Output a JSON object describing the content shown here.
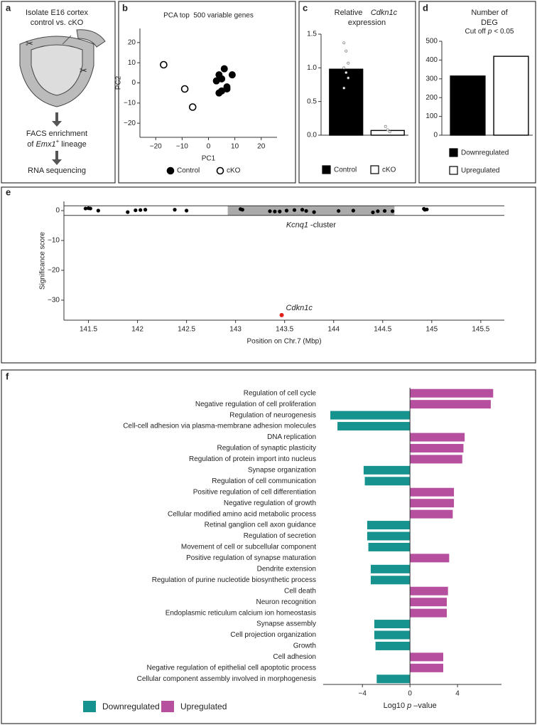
{
  "panel_labels": [
    "a",
    "b",
    "c",
    "d",
    "e",
    "f"
  ],
  "diagram": {
    "step1": [
      "Isolate E16 cortex",
      "control vs. cKO"
    ],
    "step2": {
      "line1": "FACS enrichment",
      "prefix": "of",
      "gene": "Emx1",
      "sup": "+",
      "suffix": "lineage"
    },
    "step3": "RNA sequencing"
  },
  "chart_data": [
    {
      "type": "scatter",
      "title": "PCA top  500 variable genes",
      "xlabel": "PC1",
      "ylabel": "PC2",
      "xlim": [
        -26,
        26
      ],
      "ylim": [
        -27,
        27
      ],
      "xticks": [
        {
          "value": -20,
          "label": "−20"
        },
        {
          "value": -10,
          "label": "−10"
        },
        0,
        10,
        20
      ],
      "yticks": [
        {
          "value": -20,
          "label": "−20"
        },
        {
          "value": -10,
          "label": "−10"
        },
        0,
        10,
        20
      ],
      "series": [
        {
          "name": "Control",
          "color": "#000000",
          "marker": "filled",
          "x": [
            4,
            5,
            7,
            9,
            6,
            4,
            7,
            5,
            3
          ],
          "values": [
            -5,
            2,
            -2,
            4,
            7,
            4,
            -3,
            -4,
            1
          ]
        },
        {
          "name": "cKO",
          "color": "#000000",
          "marker": "open",
          "x": [
            -17,
            -9,
            -6
          ],
          "values": [
            9,
            -3,
            -12
          ]
        }
      ]
    },
    {
      "type": "bar",
      "title": {
        "text": "Relative",
        "gene": "Cdkn1c",
        "rest": "expression"
      },
      "categories": [
        "Control",
        "cKO"
      ],
      "values": [
        0.98,
        0.07
      ],
      "colors": [
        "#000000",
        "#ffffff"
      ],
      "points": [
        [
          1.37,
          1.25,
          1.07,
          1.0,
          0.93,
          0.85,
          0.7
        ],
        [
          0.13,
          0.08,
          0.05
        ]
      ],
      "ylim": [
        0,
        1.5
      ],
      "yticks": [
        {
          "value": 0,
          "label": "0.0"
        },
        0.5,
        {
          "value": 1,
          "label": "1.0"
        },
        1.5
      ]
    },
    {
      "type": "bar",
      "title": [
        "Number of",
        "DEG"
      ],
      "subtitle": {
        "text": "Cut off",
        "italic": "p",
        "rest": "< 0.05"
      },
      "categories": [
        "Downregulated",
        "Upregulated"
      ],
      "values": [
        315,
        420
      ],
      "colors": [
        "#000000",
        "#ffffff"
      ],
      "ylim": [
        0,
        500
      ],
      "yticks": [
        0,
        100,
        200,
        300,
        400,
        500
      ]
    },
    {
      "type": "scatter",
      "ylabel": "Significance score",
      "xlabel": "Position on Chr.7 (Mbp)",
      "color": "#000000",
      "xlim": [
        141.25,
        145.74
      ],
      "ylim": [
        -36.7,
        3.1
      ],
      "xticks": [
        141.5,
        142,
        142.5,
        143,
        143.5,
        144,
        144.5,
        145,
        145.5
      ],
      "yticks": [
        0,
        {
          "value": -10,
          "label": "−10"
        },
        {
          "value": -20,
          "label": "−20"
        },
        {
          "value": -30,
          "label": "−30"
        }
      ],
      "band": [
        -1.6,
        1.6
      ],
      "region": {
        "label": "Kcnq1",
        "suffix": "-cluster",
        "from": 142.92,
        "to": 144.62
      },
      "x": [
        141.47,
        141.5,
        141.52,
        141.6,
        141.9,
        141.98,
        142.03,
        142.08,
        142.38,
        142.5,
        143.05,
        143.07,
        143.35,
        143.4,
        143.45,
        143.52,
        143.6,
        143.68,
        143.72,
        143.8,
        144.05,
        144.2,
        144.4,
        144.45,
        144.52,
        144.6,
        144.92,
        144.93,
        144.95
      ],
      "values": [
        0.7,
        0.8,
        0.7,
        0,
        -0.5,
        0.1,
        0.2,
        0.3,
        0.3,
        0,
        0.5,
        0.3,
        -0.2,
        -0.3,
        -0.3,
        0,
        0.2,
        0.3,
        -0.1,
        -0.5,
        -0.1,
        0,
        -0.6,
        -0.2,
        -0.1,
        -0.2,
        0.6,
        0.3,
        0.4
      ],
      "highlight": {
        "label": "Cdkn1c",
        "x": 143.47,
        "value": -35,
        "color": "#e0201b"
      }
    },
    {
      "type": "hbar",
      "xlabel": {
        "text": "Log10",
        "italic": "p",
        "rest": "–value"
      },
      "xlim": [
        -7.3,
        7.7
      ],
      "xticks": [
        {
          "value": -4,
          "label": "−4"
        },
        0,
        4
      ],
      "series": [
        {
          "name": "Downregulated",
          "color": "#17938f"
        },
        {
          "name": "Upregulated",
          "color": "#b6509e"
        }
      ],
      "categories": [
        "Regulation of cell cycle",
        "Negative regulation of cell proliferation",
        "Regulation of neurogenesis",
        "Cell-cell adhesion via plasma-membrane adhesion molecules",
        "DNA replication",
        "Regulation of synaptic plasticity",
        "Regulation of protein import into nucleus",
        "Synapse organization",
        "Regulation of cell communication",
        "Positive regulation of cell differentiation",
        "Negative regulation of growth",
        "Cellular modified amino acid metabolic process",
        "Retinal ganglion cell axon guidance",
        "Regulation of secretion",
        "Movement of cell or subcellular component",
        "Positive regulation of synapse maturation",
        "Dendrite extension",
        "Regulation of purine nucleotide biosynthetic process",
        "Cell death",
        "Neuron recognition",
        "Endoplasmic reticulum calcium ion homeostasis",
        "Synapse assembly",
        "Cell projection organization",
        "Growth",
        "Cell adhesion",
        "Negative regulation of epithelial cell apoptotic process",
        "Cellular component assembly involved in morphogenesis"
      ],
      "values": [
        7.0,
        6.8,
        -6.7,
        -6.1,
        4.6,
        4.5,
        4.4,
        -3.9,
        -3.8,
        3.7,
        3.7,
        3.6,
        -3.6,
        -3.6,
        -3.5,
        3.3,
        -3.3,
        -3.3,
        3.2,
        3.1,
        3.1,
        -3.0,
        -3.0,
        -2.9,
        2.8,
        2.8,
        -2.8
      ]
    }
  ]
}
